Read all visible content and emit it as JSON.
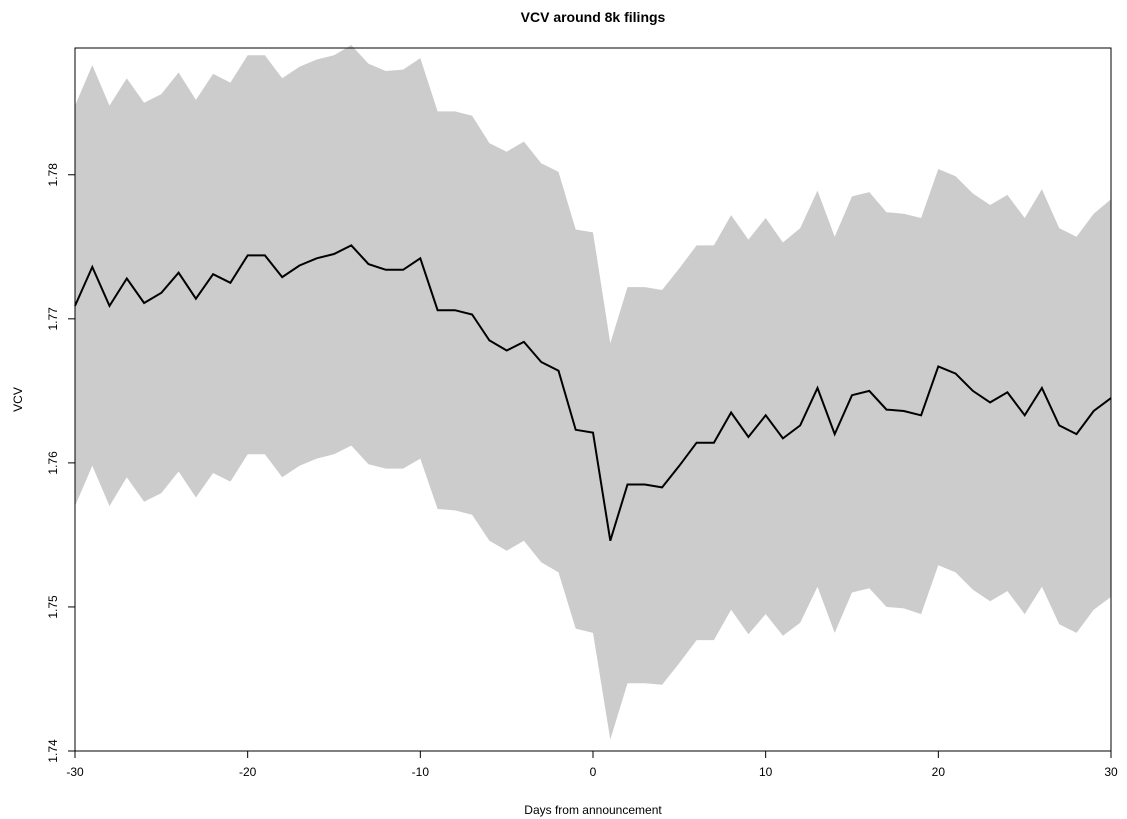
{
  "chart_data": {
    "type": "line",
    "title": "VCV around 8k filings",
    "xlabel": "Days from announcement",
    "ylabel": "VCV",
    "xlim": [
      -30,
      30
    ],
    "ylim": [
      1.74,
      1.7888
    ],
    "x_ticks": [
      -30,
      -20,
      -10,
      0,
      10,
      20,
      30
    ],
    "x_tick_labels": [
      "-30",
      "-20",
      "-10",
      "0",
      "10",
      "20",
      "30"
    ],
    "y_ticks": [
      1.74,
      1.75,
      1.76,
      1.77,
      1.78
    ],
    "y_tick_labels": [
      "1.74",
      "1.75",
      "1.76",
      "1.77",
      "1.78"
    ],
    "grid": false,
    "legend": "none",
    "colors": {
      "band": "#cccccc",
      "line": "#000000",
      "axes": "#000000",
      "background": "#ffffff"
    },
    "x": [
      -30,
      -29,
      -28,
      -27,
      -26,
      -25,
      -24,
      -23,
      -22,
      -21,
      -20,
      -19,
      -18,
      -17,
      -16,
      -15,
      -14,
      -13,
      -12,
      -11,
      -10,
      -9,
      -8,
      -7,
      -6,
      -5,
      -4,
      -3,
      -2,
      -1,
      0,
      1,
      2,
      3,
      4,
      5,
      6,
      7,
      8,
      9,
      10,
      11,
      12,
      13,
      14,
      15,
      16,
      17,
      18,
      19,
      20,
      21,
      22,
      23,
      24,
      25,
      26,
      27,
      28,
      29,
      30
    ],
    "series": [
      {
        "role": "mean",
        "values": [
          1.7709,
          1.7736,
          1.7709,
          1.7728,
          1.7711,
          1.7718,
          1.7732,
          1.7714,
          1.7731,
          1.7725,
          1.7744,
          1.7744,
          1.7729,
          1.7737,
          1.7742,
          1.7745,
          1.7751,
          1.7738,
          1.7734,
          1.7734,
          1.7742,
          1.7706,
          1.7706,
          1.7703,
          1.7685,
          1.7678,
          1.7684,
          1.767,
          1.7664,
          1.7623,
          1.7621,
          1.7546,
          1.7585,
          1.7585,
          1.7583,
          1.7598,
          1.7614,
          1.7614,
          1.7635,
          1.7618,
          1.7633,
          1.7617,
          1.7626,
          1.7652,
          1.762,
          1.7647,
          1.765,
          1.7637,
          1.7636,
          1.7633,
          1.7667,
          1.7662,
          1.765,
          1.7642,
          1.7649,
          1.7633,
          1.7652,
          1.7626,
          1.762,
          1.7636,
          1.7645
        ]
      },
      {
        "role": "upper",
        "values": [
          1.7848,
          1.7876,
          1.7848,
          1.7867,
          1.785,
          1.7856,
          1.7871,
          1.7852,
          1.787,
          1.7864,
          1.7883,
          1.7883,
          1.7867,
          1.7875,
          1.788,
          1.7883,
          1.789,
          1.7877,
          1.7872,
          1.7873,
          1.7881,
          1.7844,
          1.7844,
          1.7841,
          1.7822,
          1.7816,
          1.7823,
          1.7808,
          1.7802,
          1.7762,
          1.776,
          1.7683,
          1.7722,
          1.7722,
          1.772,
          1.7735,
          1.7751,
          1.7751,
          1.7772,
          1.7755,
          1.777,
          1.7753,
          1.7763,
          1.7789,
          1.7757,
          1.7785,
          1.7788,
          1.7774,
          1.7773,
          1.777,
          1.7804,
          1.7799,
          1.7787,
          1.7779,
          1.7786,
          1.777,
          1.779,
          1.7763,
          1.7757,
          1.7773,
          1.7783
        ]
      },
      {
        "role": "lower",
        "values": [
          1.757,
          1.7598,
          1.757,
          1.759,
          1.7573,
          1.7579,
          1.7594,
          1.7576,
          1.7593,
          1.7587,
          1.7606,
          1.7606,
          1.759,
          1.7598,
          1.7603,
          1.7606,
          1.7612,
          1.7599,
          1.7596,
          1.7596,
          1.7603,
          1.7568,
          1.7567,
          1.7564,
          1.7546,
          1.7539,
          1.7546,
          1.7531,
          1.7524,
          1.7485,
          1.7482,
          1.7408,
          1.7447,
          1.7447,
          1.7446,
          1.7461,
          1.7477,
          1.7477,
          1.7498,
          1.7481,
          1.7495,
          1.748,
          1.7489,
          1.7514,
          1.7482,
          1.751,
          1.7513,
          1.75,
          1.7499,
          1.7495,
          1.7529,
          1.7524,
          1.7512,
          1.7504,
          1.7511,
          1.7495,
          1.7514,
          1.7488,
          1.7482,
          1.7498,
          1.7507
        ]
      }
    ]
  }
}
